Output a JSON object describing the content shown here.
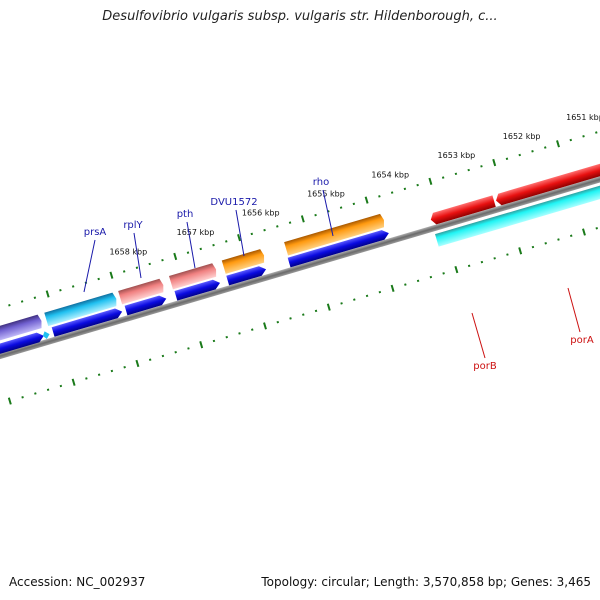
{
  "title": "Desulfovibrio vulgaris subsp. vulgaris str. Hildenborough, c...",
  "footer": {
    "accession": "Accession: NC_002937",
    "summary": "Topology: circular; Length: 3,570,858 bp; Genes: 3,465"
  },
  "ruler_labels": [
    "1651 kbp",
    "1652 kbp",
    "1653 kbp",
    "1654 kbp",
    "1655 kbp",
    "1656 kbp",
    "1657 kbp",
    "1658 kbp"
  ],
  "forward_gene_names": [
    "prsA",
    "rplY",
    "pth",
    "DVU1572",
    "rho"
  ],
  "reverse_gene_names": [
    "porB",
    "porA"
  ],
  "colors": {
    "forward_label": "#1a1aaa",
    "reverse_label": "#cc1111",
    "ruler_ticks": "#1a7a1a",
    "backbone": "#777777",
    "cds": "#0a0ae0",
    "red_gene": "#e81010",
    "cyan_gene": "#18f0f0"
  }
}
